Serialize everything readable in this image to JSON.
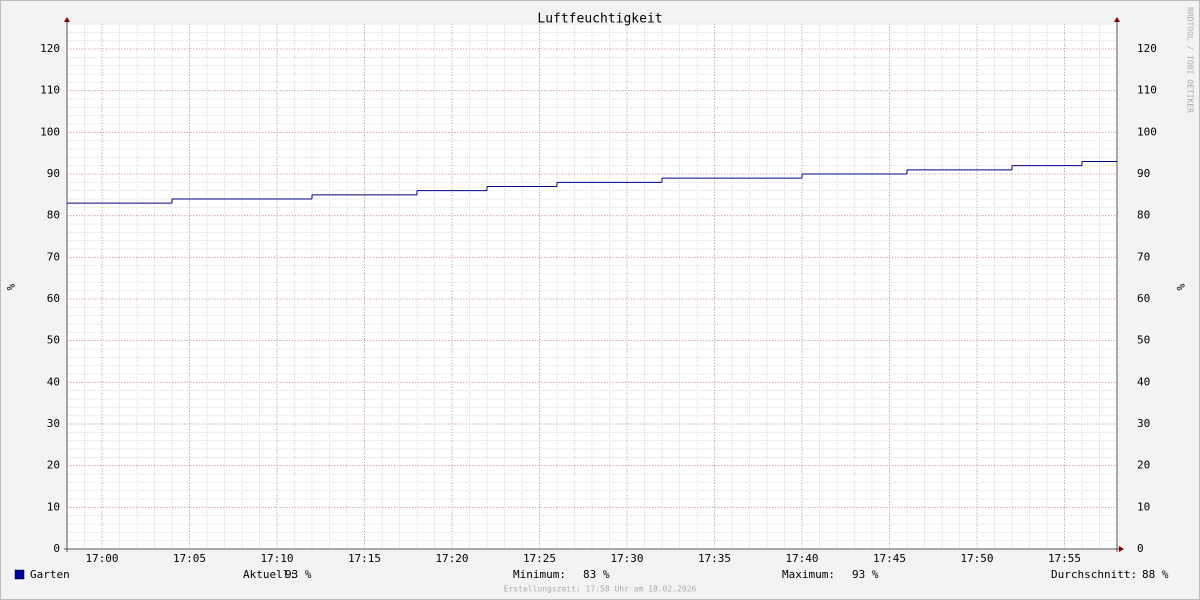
{
  "chart_data": {
    "type": "line",
    "title": "Luftfeuchtigkeit",
    "ylabel": "%",
    "watermark": "RRDTOOL / TOBI OETIKER",
    "x": [
      "16:58",
      "17:04",
      "17:12",
      "17:18",
      "17:22",
      "17:26",
      "17:32",
      "17:40",
      "17:46",
      "17:52",
      "17:56"
    ],
    "xlim": [
      "16:58",
      "17:58"
    ],
    "xticks": [
      "17:00",
      "17:05",
      "17:10",
      "17:15",
      "17:20",
      "17:25",
      "17:30",
      "17:35",
      "17:40",
      "17:45",
      "17:50",
      "17:55"
    ],
    "ylim": [
      0,
      126
    ],
    "yticks": [
      0,
      10,
      20,
      30,
      40,
      50,
      60,
      70,
      80,
      90,
      100,
      110,
      120
    ],
    "grid": true,
    "step": "post",
    "series": [
      {
        "name": "Garten",
        "color": "#000080",
        "legend_color": "#0000a0",
        "values": [
          83,
          84,
          85,
          86,
          87,
          88,
          89,
          90,
          91,
          92,
          93
        ]
      }
    ],
    "stats": [
      {
        "label": "Aktuell:",
        "value": "93 %"
      },
      {
        "label": "Minimum:",
        "value": "83 %"
      },
      {
        "label": "Maximum:",
        "value": "93 %"
      },
      {
        "label": "Durchschnitt:",
        "value": "88 %"
      }
    ],
    "footer": "Erstellungszeit: 17:58 Uhr am 18.02.2026"
  }
}
